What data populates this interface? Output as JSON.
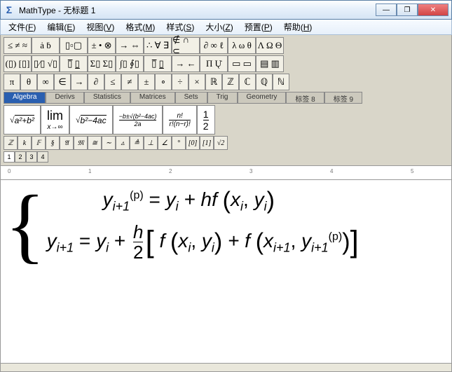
{
  "window": {
    "app": "MathType",
    "title": "MathType - 无标题 1"
  },
  "winbtns": {
    "min": "—",
    "max": "❐",
    "close": "✕"
  },
  "menu": [
    {
      "label": "文件",
      "accel": "F"
    },
    {
      "label": "编辑",
      "accel": "E"
    },
    {
      "label": "视图",
      "accel": "V"
    },
    {
      "label": "格式",
      "accel": "M"
    },
    {
      "label": "样式",
      "accel": "S"
    },
    {
      "label": "大小",
      "accel": "Z"
    },
    {
      "label": "预置",
      "accel": "P"
    },
    {
      "label": "帮助",
      "accel": "H"
    }
  ],
  "tb1": [
    "≤ ≠ ≈",
    "ȧ ḃ",
    "▯▫▢",
    "± • ⊗",
    "→ ⇔",
    "∴ ∀ ∃",
    "∉ ∩ ⊂",
    "∂ ∞ ℓ",
    "λ ω θ",
    "Λ Ω Θ"
  ],
  "tb2": [
    "(▯) [▯]",
    "▯⁄▯ √▯",
    "▯̅ ▯̲",
    "Σ▯ Σ▯",
    "∫▯ ∮▯",
    "▯̅ ▯̲",
    "→ ←",
    "Π  Ų̇",
    "▭ ▭",
    "▤ ▥"
  ],
  "tb3": [
    "π",
    "θ",
    "∞",
    "∈",
    "→",
    "∂",
    "≤",
    "≠",
    "±",
    "∘",
    "÷",
    "×",
    "ℝ",
    "ℤ",
    "ℂ",
    "ℚ",
    "ℕ"
  ],
  "cattabs": [
    "Algebra",
    "Derivs",
    "Statistics",
    "Matrices",
    "Sets",
    "Trig",
    "Geometry",
    "标签 8",
    "标签 9"
  ],
  "active_tab": "Algebra",
  "expr": {
    "e1": "√(a²+b²)",
    "e2_top": "lim",
    "e2_bot": "x→∞",
    "e3": "√(b²−4ac)",
    "e4_top": "−b±√(b²−4ac)",
    "e4_bot": "2a",
    "e5_top": "n!",
    "e5_bot": "r!(n−r)!",
    "e6_top": "1",
    "e6_bot": "2"
  },
  "mini": [
    "ℤ",
    "k",
    "𝔽",
    "§",
    "𝔄",
    "𝔐",
    "≅",
    "∼",
    "▵",
    "≜",
    "⊥",
    "∠",
    "°",
    "[0]",
    "[1]",
    "√2"
  ],
  "tinytabs": [
    "1",
    "2",
    "3",
    "4"
  ],
  "ruler": {
    "marks": [
      "0",
      "1",
      "2",
      "3",
      "4",
      "5"
    ]
  },
  "equation": {
    "line1_before": "y",
    "line1_sub1": "i+1",
    "line1_sup1": "(p)",
    "line1_eq": " = ",
    "line1_y2": "y",
    "line1_sub2": "i",
    "line1_plus": " + hf ",
    "line1_lp": "(",
    "line1_x": "x",
    "line1_subx": "i",
    "line1_comma": ",  ",
    "line1_y3": "y",
    "line1_suby3": "i",
    "line1_rp": ")",
    "line2_y1": "y",
    "line2_sub1": "i+1",
    "line2_eq": " = ",
    "line2_y2": "y",
    "line2_sub2": "i",
    "line2_plus": " + ",
    "line2_frac_n": "h",
    "line2_frac_d": "2",
    "line2_lb": "[",
    "line2_f1": " f ",
    "line2_lp1": "(",
    "line2_x1": "x",
    "line2_subx1": "i",
    "line2_c1": ",  ",
    "line2_y3": "y",
    "line2_suby3": "i",
    "line2_rp1": ")",
    "line2_plus2": " + f ",
    "line2_lp2": "(",
    "line2_x2": "x",
    "line2_subx2": "i+1",
    "line2_c2": ",  ",
    "line2_y4": "y",
    "line2_suby4": "i+1",
    "line2_supy4": "(p)",
    "line2_rp2": ")",
    "line2_rb": "]"
  },
  "colors": {
    "titlebar_start": "#fdfefe",
    "titlebar_end": "#d6e5f5",
    "toolbar_bg": "#d9d6c9",
    "active_tab": "#2a5fb0"
  }
}
